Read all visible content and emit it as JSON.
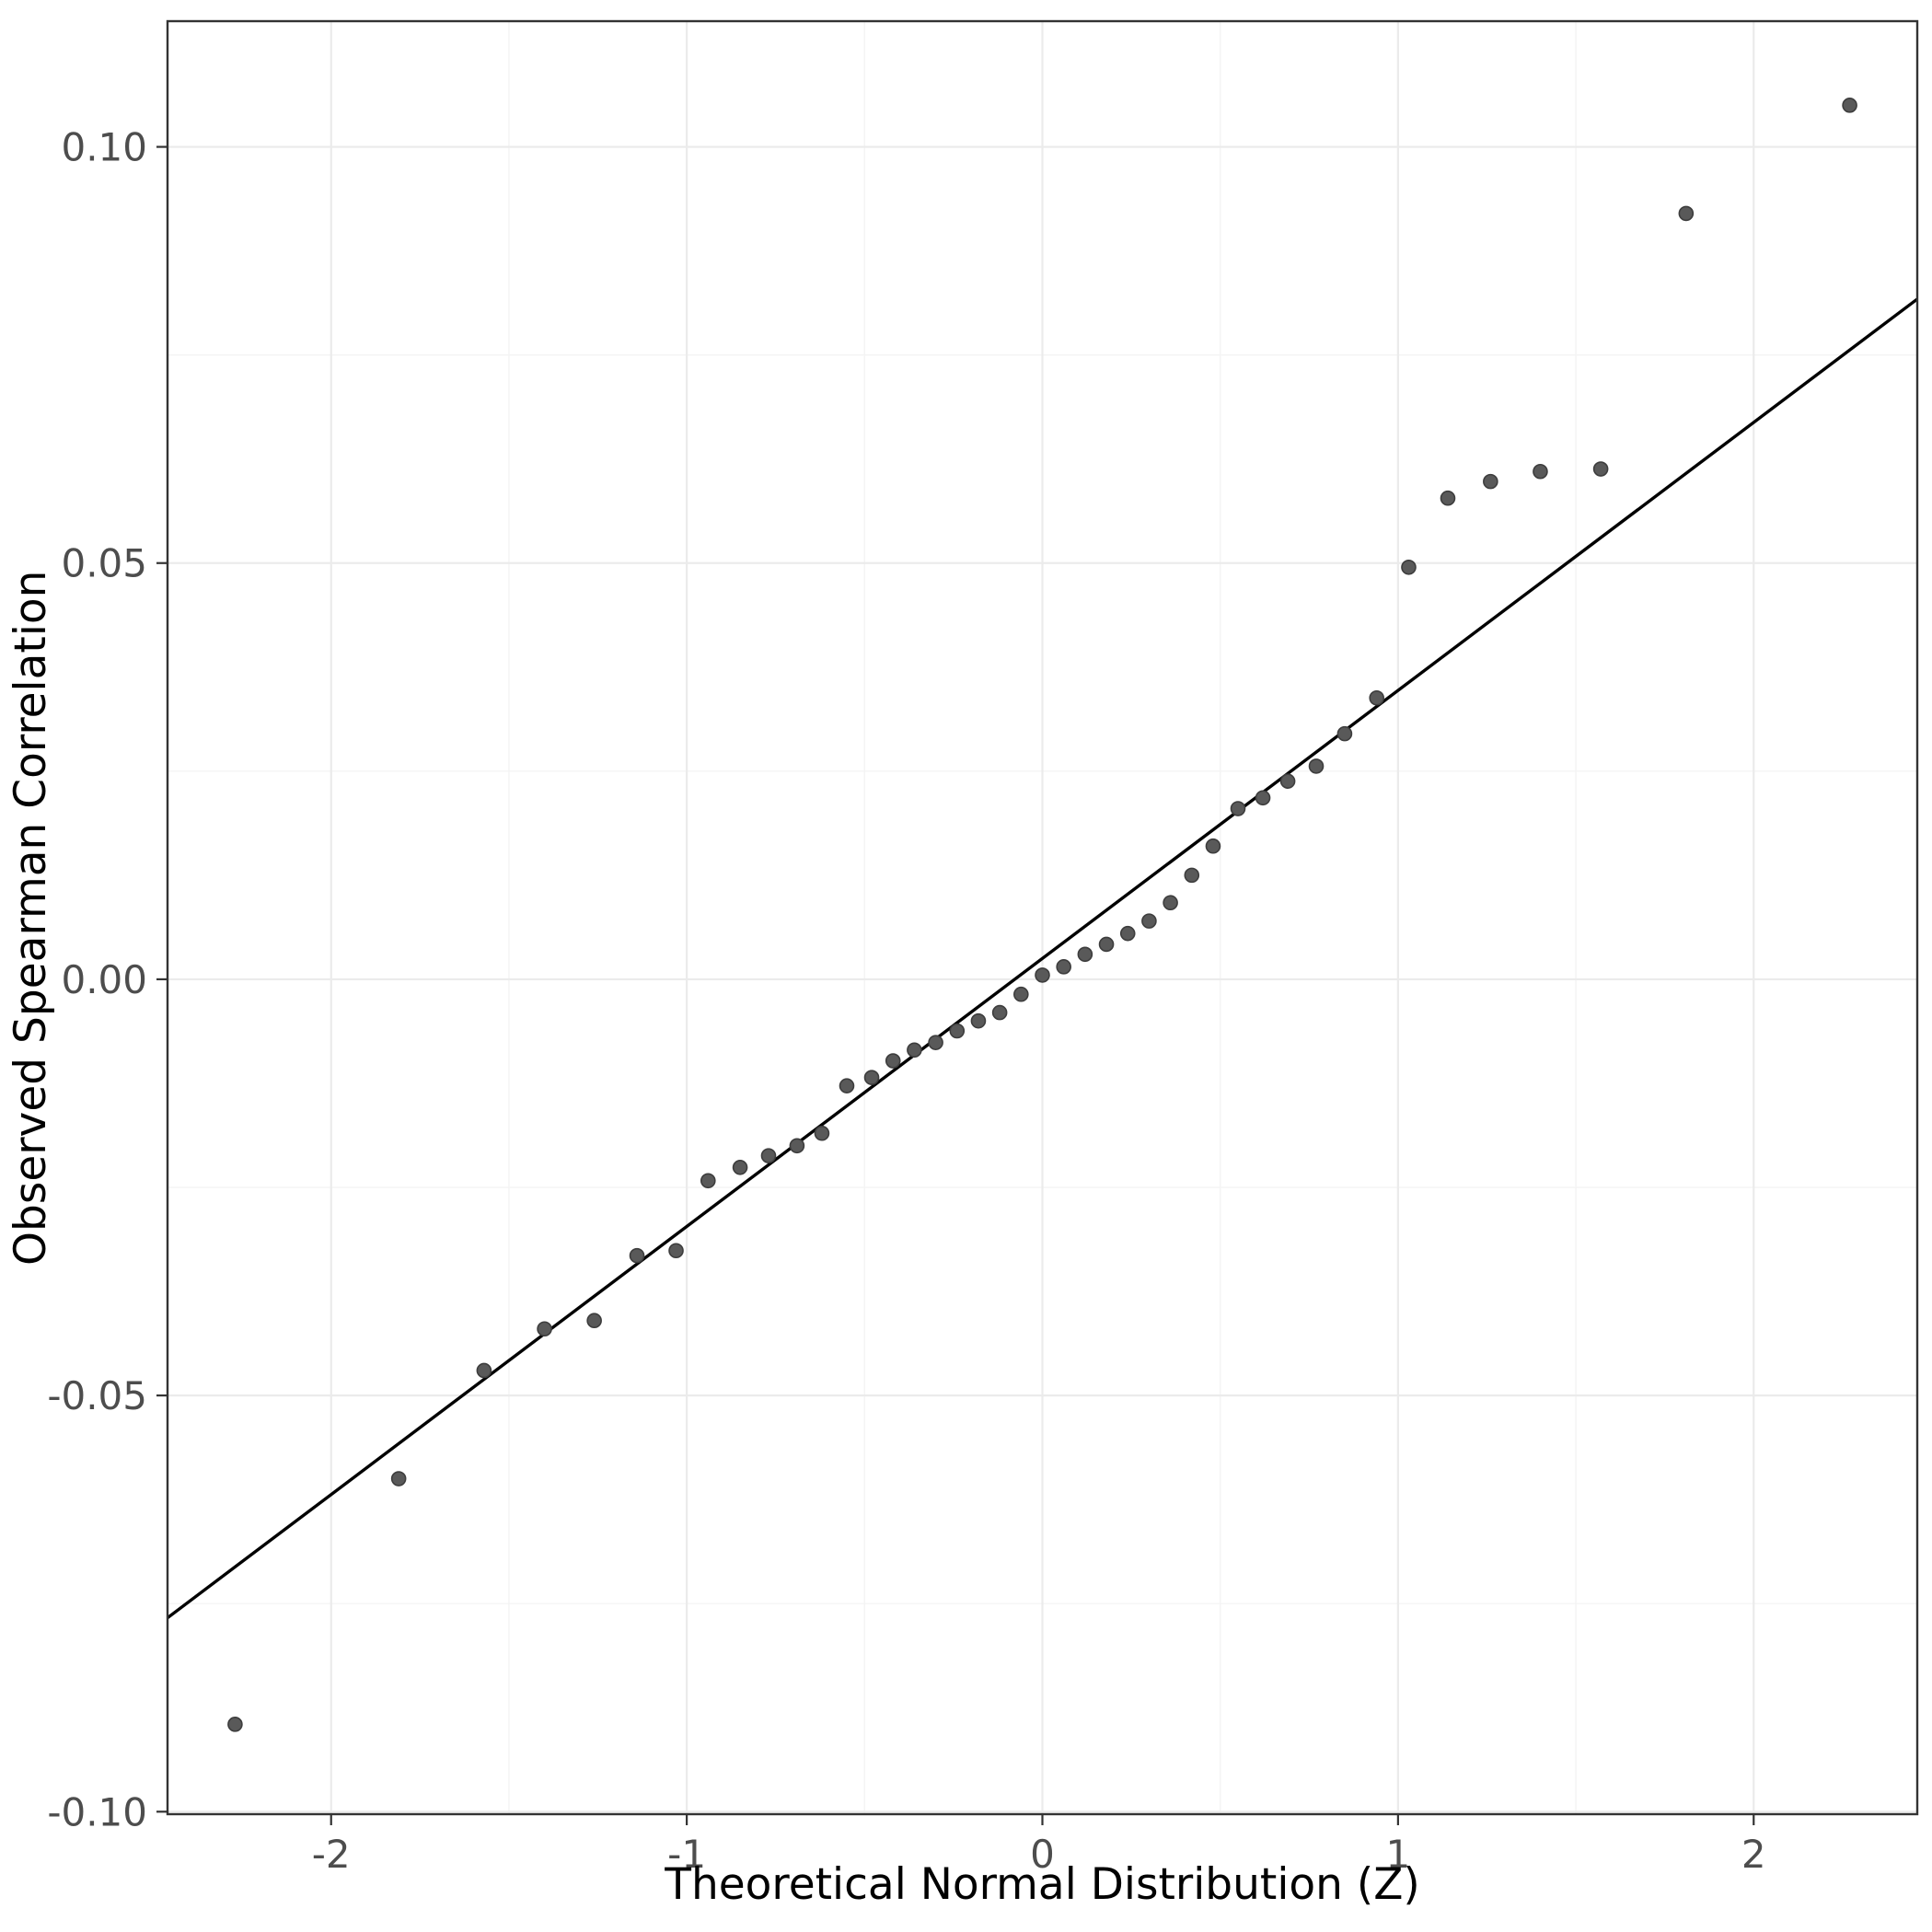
{
  "figure": {
    "background_color": "#ffffff"
  },
  "chart_data": {
    "type": "scatter",
    "title": "",
    "xlabel": "Theoretical Normal Distribution (Z)",
    "ylabel": "Observed Spearman Correlation",
    "xlim": [
      -2.46,
      2.46
    ],
    "ylim": [
      -0.1003,
      0.1151
    ],
    "grid": true,
    "legend": "none",
    "x_ticks": {
      "values": [
        -2,
        -1,
        0,
        1,
        2
      ],
      "labels": [
        "-2",
        "-1",
        "0",
        "1",
        "2"
      ]
    },
    "y_ticks": {
      "values": [
        -0.1,
        -0.05,
        0.0,
        0.05,
        0.1
      ],
      "labels": [
        "-0.10",
        "-0.05",
        "0.00",
        "0.05",
        "0.10"
      ]
    },
    "x_minor_ticks": [
      -1.5,
      -0.5,
      0.5,
      1.5
    ],
    "y_minor_ticks": [
      -0.075,
      -0.025,
      0.025,
      0.075
    ],
    "reference_line": {
      "intercept": 0.0025,
      "slope": 0.0322,
      "color": "#000000"
    },
    "points": [
      [
        -2.27,
        -0.0895
      ],
      [
        -1.81,
        -0.06
      ],
      [
        -1.57,
        -0.047
      ],
      [
        -1.4,
        -0.042
      ],
      [
        -1.26,
        -0.041
      ],
      [
        -1.14,
        -0.0332
      ],
      [
        -1.03,
        -0.0326
      ],
      [
        -0.94,
        -0.0242
      ],
      [
        -0.85,
        -0.0226
      ],
      [
        -0.77,
        -0.0212
      ],
      [
        -0.69,
        -0.02
      ],
      [
        -0.62,
        -0.0185
      ],
      [
        -0.55,
        -0.0128
      ],
      [
        -0.48,
        -0.0118
      ],
      [
        -0.42,
        -0.0098
      ],
      [
        -0.36,
        -0.0085
      ],
      [
        -0.3,
        -0.0076
      ],
      [
        -0.24,
        -0.0062
      ],
      [
        -0.18,
        -0.005
      ],
      [
        -0.12,
        -0.004
      ],
      [
        -0.06,
        -0.0018
      ],
      [
        0.0,
        0.0005
      ],
      [
        0.06,
        0.0015
      ],
      [
        0.12,
        0.003
      ],
      [
        0.18,
        0.0042
      ],
      [
        0.24,
        0.0055
      ],
      [
        0.3,
        0.007
      ],
      [
        0.36,
        0.0092
      ],
      [
        0.42,
        0.0125
      ],
      [
        0.48,
        0.016
      ],
      [
        0.55,
        0.0205
      ],
      [
        0.62,
        0.0218
      ],
      [
        0.69,
        0.0238
      ],
      [
        0.77,
        0.0256
      ],
      [
        0.85,
        0.0295
      ],
      [
        0.94,
        0.0338
      ],
      [
        1.03,
        0.0495
      ],
      [
        1.14,
        0.0578
      ],
      [
        1.26,
        0.0598
      ],
      [
        1.4,
        0.061
      ],
      [
        1.57,
        0.0613
      ],
      [
        1.81,
        0.092
      ],
      [
        2.27,
        0.105
      ]
    ],
    "style": {
      "panel_bg": "#ffffff",
      "panel_border": "#333333",
      "grid_major": "#ebebeb",
      "grid_minor": "#f4f4f4",
      "point_fill": "#595959",
      "point_stroke": "#3d3d3d",
      "tick_mark_color": "#333333",
      "tick_label_color": "#4d4d4d",
      "axis_title_color": "#000000"
    }
  }
}
